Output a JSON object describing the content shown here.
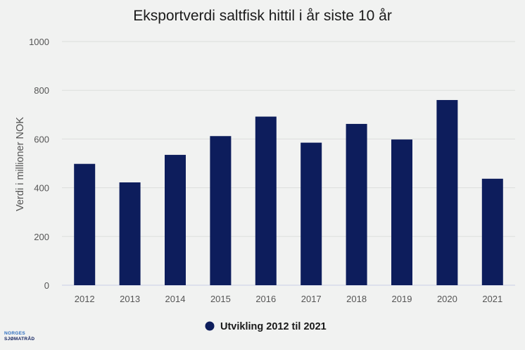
{
  "chart_data": {
    "type": "bar",
    "title": "Eksportverdi saltfisk hittil i år siste 10 år",
    "xlabel": "",
    "ylabel": "Verdi i millioner NOK",
    "categories": [
      "2012",
      "2013",
      "2014",
      "2015",
      "2016",
      "2017",
      "2018",
      "2019",
      "2020",
      "2021"
    ],
    "series": [
      {
        "name": "Utvikling 2012 til 2021",
        "values": [
          498,
          422,
          535,
          612,
          692,
          585,
          662,
          598,
          760,
          437
        ],
        "color": "#0d1d5c"
      }
    ],
    "ylim": [
      0,
      1000
    ],
    "yticks": [
      "0",
      "200",
      "400",
      "600",
      "800",
      "1000"
    ],
    "grid": true,
    "legend_position": "bottom-center"
  },
  "logo": {
    "line1": "NORGES",
    "line2": "SJØMATRÅD"
  }
}
